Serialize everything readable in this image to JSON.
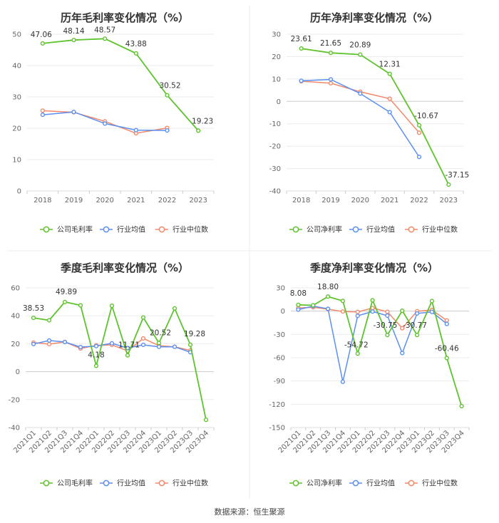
{
  "source": "数据来源：恒生聚源",
  "series_names": [
    "公司毛利率",
    "行业均值",
    "行业中位数"
  ],
  "colors": {
    "company": "#5fc32e",
    "industry_avg": "#5b8ff0",
    "industry_median": "#f4896a"
  },
  "chart_data": [
    {
      "type": "line",
      "title": "历年毛利率变化情况（%）",
      "categories": [
        "2018",
        "2019",
        "2020",
        "2021",
        "2022",
        "2023"
      ],
      "ylim": [
        0,
        50
      ],
      "yticks": [
        0,
        10,
        20,
        30,
        40,
        50
      ],
      "series": [
        {
          "name": "公司毛利率",
          "values": [
            47.06,
            48.14,
            48.57,
            43.88,
            30.52,
            19.23
          ]
        },
        {
          "name": "行业均值",
          "values": [
            24.3,
            25.2,
            21.5,
            19.4,
            19.3,
            null
          ]
        },
        {
          "name": "行业中位数",
          "values": [
            25.6,
            25.1,
            22.2,
            18.4,
            20.1,
            null
          ]
        }
      ],
      "data_labels": [
        "47.06",
        "48.14",
        "48.57",
        "43.88",
        "30.52",
        "19.23"
      ],
      "legend": [
        "公司毛利率",
        "行业均值",
        "行业中位数"
      ]
    },
    {
      "type": "line",
      "title": "历年净利率变化情况（%）",
      "categories": [
        "2018",
        "2019",
        "2020",
        "2021",
        "2022",
        "2023"
      ],
      "ylim": [
        -40,
        30
      ],
      "yticks": [
        -40,
        -30,
        -20,
        -10,
        0,
        10,
        20,
        30
      ],
      "series": [
        {
          "name": "公司净利率",
          "values": [
            23.61,
            21.65,
            20.89,
            12.31,
            -10.67,
            -37.15
          ]
        },
        {
          "name": "行业均值",
          "values": [
            9.2,
            9.8,
            3.5,
            -4.8,
            -24.8,
            null
          ]
        },
        {
          "name": "行业中位数",
          "values": [
            9.0,
            8.1,
            4.3,
            1.2,
            -14.0,
            null
          ]
        }
      ],
      "data_labels": [
        "23.61",
        "21.65",
        "20.89",
        "12.31",
        "-10.67",
        "-37.15"
      ],
      "legend": [
        "公司净利率",
        "行业均值",
        "行业中位数"
      ]
    },
    {
      "type": "line",
      "title": "季度毛利率变化情况（%）",
      "categories": [
        "2021Q1",
        "2021Q2",
        "2021Q3",
        "2021Q4",
        "2022Q1",
        "2022Q2",
        "2022Q3",
        "2022Q4",
        "2023Q1",
        "2023Q2",
        "2023Q3",
        "2023Q4"
      ],
      "ylim": [
        -40,
        60
      ],
      "yticks": [
        -40,
        -20,
        0,
        20,
        40,
        60
      ],
      "series": [
        {
          "name": "公司毛利率",
          "values": [
            38.53,
            36.8,
            49.89,
            47.5,
            4.18,
            47.2,
            11.71,
            38.8,
            20.52,
            45.3,
            19.28,
            -34.5
          ]
        },
        {
          "name": "行业均值",
          "values": [
            19.8,
            22.3,
            21.2,
            17.6,
            18.3,
            20.3,
            16.9,
            19.2,
            17.8,
            17.8,
            13.9,
            null
          ]
        },
        {
          "name": "行业中位数",
          "values": [
            20.8,
            19.7,
            21.3,
            16.6,
            18.8,
            19.2,
            14.9,
            23.8,
            18.6,
            17.8,
            15.2,
            null
          ]
        }
      ],
      "data_labels": [
        "38.53",
        "",
        "49.89",
        "",
        "4.18",
        "",
        "11.71",
        "",
        "20.52",
        "",
        "19.28",
        ""
      ],
      "legend": [
        "公司毛利率",
        "行业均值",
        "行业中位数"
      ]
    },
    {
      "type": "line",
      "title": "季度净利率变化情况（%）",
      "categories": [
        "2021Q1",
        "2021Q2",
        "2021Q3",
        "2021Q4",
        "2022Q1",
        "2022Q2",
        "2022Q3",
        "2022Q4",
        "2023Q1",
        "2023Q2",
        "2023Q3",
        "2023Q4"
      ],
      "ylim": [
        -150,
        30
      ],
      "yticks": [
        -150,
        -120,
        -90,
        -60,
        -30,
        0,
        30
      ],
      "series": [
        {
          "name": "公司净利率",
          "values": [
            8.08,
            7.5,
            18.8,
            13.2,
            -54.72,
            14.0,
            -30.75,
            0.5,
            -30.77,
            13.0,
            -60.46,
            -122.5
          ]
        },
        {
          "name": "行业均值",
          "values": [
            2.0,
            6.5,
            3.0,
            -91.0,
            -6.0,
            -0.5,
            -5.8,
            -54.0,
            -3.0,
            -1.0,
            -16.5,
            null
          ]
        },
        {
          "name": "行业中位数",
          "values": [
            4.0,
            5.0,
            2.5,
            -0.5,
            -1.0,
            4.0,
            -0.8,
            -22.0,
            -0.2,
            1.5,
            -12.0,
            null
          ]
        }
      ],
      "data_labels": [
        "8.08",
        "",
        "18.80",
        "",
        "-54.72",
        "",
        "-30.75",
        "",
        "-30.77",
        "",
        "-60.46",
        ""
      ],
      "legend": [
        "公司净利率",
        "行业均值",
        "行业中位数"
      ]
    }
  ]
}
